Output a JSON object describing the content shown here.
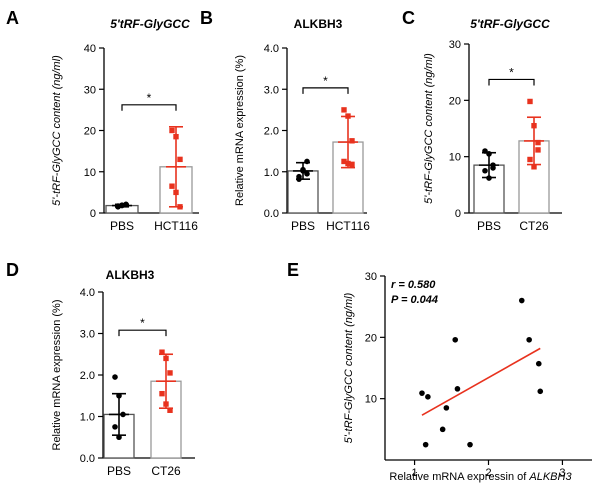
{
  "colors": {
    "control": "#000000",
    "treatment": "#e8321e",
    "bar_fill": "#ffffff",
    "bar_edge_control": "#555555",
    "bar_edge_treatment": "#999999",
    "fit_line": "#e8321e"
  },
  "chart_data": [
    {
      "letter": "A",
      "type": "bar",
      "title": "5'tRF-GlyGCC",
      "title_italic": true,
      "ylabel": "5'-tRF-GlyGCC content (ng/ml)",
      "ylim": [
        0,
        40
      ],
      "yticks": [
        0,
        10,
        20,
        30,
        40
      ],
      "ytick_labels": [
        "0",
        "10",
        "20",
        "30",
        "40"
      ],
      "categories": [
        "PBS",
        "HCT116"
      ],
      "values": [
        1.8,
        11.2
      ],
      "error": [
        0.3,
        9.7
      ],
      "points": [
        [
          1.5,
          1.8,
          2.0,
          1.7,
          1.9,
          2.1
        ],
        [
          20.0,
          18.5,
          13.0,
          6.5,
          5.0,
          1.5
        ]
      ],
      "significance": "*"
    },
    {
      "letter": "B",
      "type": "bar",
      "title": "ALKBH3",
      "title_italic": false,
      "ylabel": "Relative mRNA expression (%)",
      "ylim": [
        0,
        4.0
      ],
      "yticks": [
        0,
        1,
        2,
        3,
        4
      ],
      "ytick_labels": [
        "0.0",
        "1.0",
        "2.0",
        "3.0",
        "4.0"
      ],
      "categories": [
        "PBS",
        "HCT116"
      ],
      "values": [
        1.02,
        1.72
      ],
      "error": [
        0.2,
        0.62
      ],
      "points": [
        [
          0.82,
          1.02,
          1.25,
          0.88,
          1.05,
          0.95
        ],
        [
          2.5,
          2.35,
          1.75,
          1.25,
          1.2,
          1.18
        ]
      ],
      "significance": "*"
    },
    {
      "letter": "C",
      "type": "bar",
      "title": "5'tRF-GlyGCC",
      "title_italic": true,
      "ylabel": "5'-tRF-GlyGCC content (ng/ml)",
      "ylim": [
        0,
        30
      ],
      "yticks": [
        0,
        10,
        20,
        30
      ],
      "ytick_labels": [
        "0",
        "10",
        "20",
        "30"
      ],
      "categories": [
        "PBS",
        "CT26"
      ],
      "values": [
        8.5,
        12.8
      ],
      "error": [
        2.2,
        4.2
      ],
      "points": [
        [
          11.0,
          10.5,
          8.5,
          7.5,
          6.2,
          8.0
        ],
        [
          19.8,
          15.5,
          11.2,
          9.5,
          8.2,
          12.5
        ]
      ],
      "significance": "*"
    },
    {
      "letter": "D",
      "type": "bar",
      "title": "ALKBH3",
      "title_italic": false,
      "ylabel": "Relative mRNA expression (%)",
      "ylim": [
        0,
        4.0
      ],
      "yticks": [
        0,
        1,
        2,
        3,
        4
      ],
      "ytick_labels": [
        "0.0",
        "1.0",
        "2.0",
        "3.0",
        "4.0"
      ],
      "categories": [
        "PBS",
        "CT26"
      ],
      "values": [
        1.05,
        1.85
      ],
      "error": [
        0.5,
        0.65
      ],
      "points": [
        [
          1.95,
          1.5,
          1.05,
          0.75,
          0.5
        ],
        [
          2.55,
          2.4,
          2.05,
          1.55,
          1.3,
          1.15
        ]
      ],
      "significance": "*"
    },
    {
      "letter": "E",
      "type": "scatter",
      "title": "",
      "xlabel_prefix": "Relative mRNA expressin of ",
      "xlabel_gene": "ALKBH3",
      "ylabel": "5'-tRF-GlyGCC content (ng/ml)",
      "xlim": [
        0.6,
        3.4
      ],
      "ylim": [
        0,
        30
      ],
      "xticks": [
        1,
        2,
        3
      ],
      "yticks": [
        10,
        20,
        30
      ],
      "r_text": "r = 0.580",
      "p_text": "P = 0.044",
      "points": [
        [
          1.1,
          10.9
        ],
        [
          1.18,
          10.3
        ],
        [
          1.15,
          2.5
        ],
        [
          1.38,
          5.0
        ],
        [
          1.43,
          8.5
        ],
        [
          1.55,
          19.6
        ],
        [
          1.58,
          11.6
        ],
        [
          1.75,
          2.5
        ],
        [
          2.45,
          26.0
        ],
        [
          2.55,
          19.6
        ],
        [
          2.68,
          15.7
        ],
        [
          2.7,
          11.2
        ]
      ],
      "fit": [
        [
          1.1,
          7.3
        ],
        [
          2.7,
          18.2
        ]
      ]
    }
  ]
}
